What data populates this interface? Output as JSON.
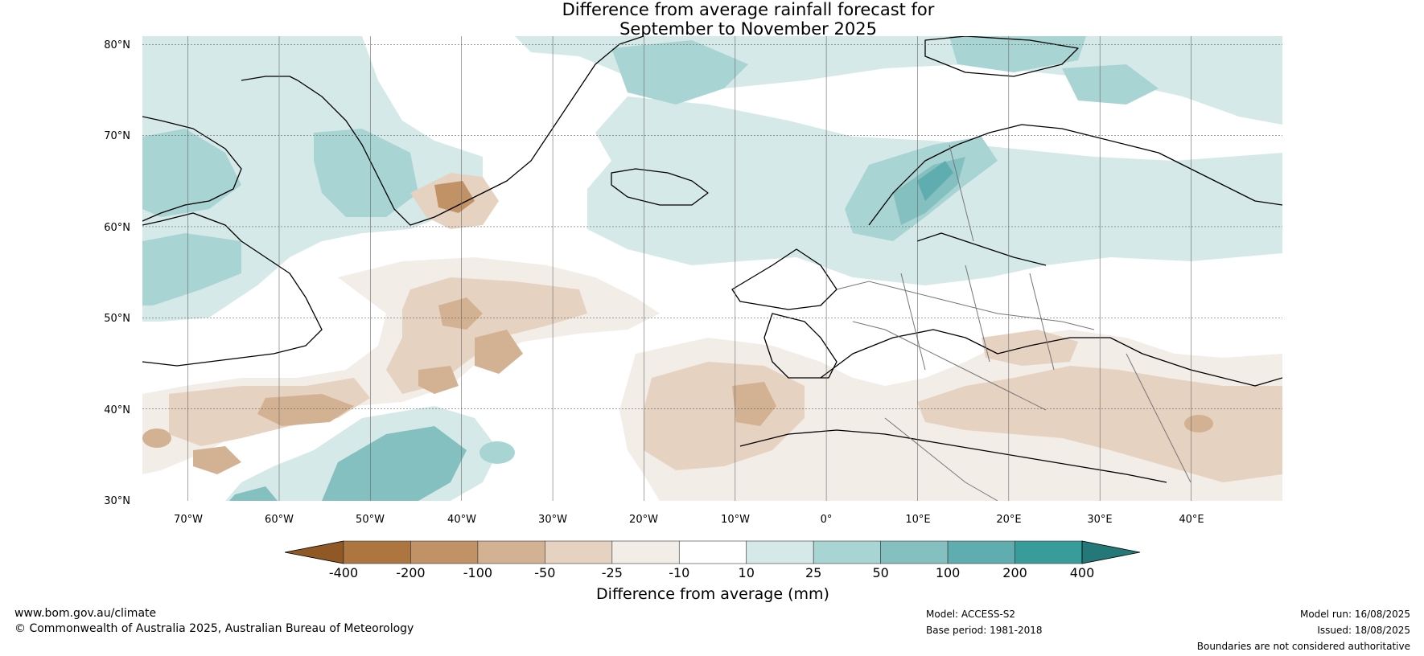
{
  "title_line1": "Difference from average rainfall forecast for",
  "title_line2": "September to November 2025",
  "map": {
    "lat_ticks": [
      "80°N",
      "70°N",
      "60°N",
      "50°N",
      "40°N",
      "30°N"
    ],
    "lon_ticks": [
      "70°W",
      "60°W",
      "50°W",
      "40°W",
      "30°W",
      "20°W",
      "10°W",
      "0°",
      "10°E",
      "20°E",
      "30°E",
      "40°E"
    ],
    "extent": {
      "lon": [
        -75,
        50
      ],
      "lat": [
        30,
        81
      ]
    }
  },
  "colorbar": {
    "label": "Difference from average (mm)",
    "ticks": [
      "-400",
      "-200",
      "-100",
      "-50",
      "-25",
      "-10",
      "10",
      "25",
      "50",
      "100",
      "200",
      "400"
    ],
    "colors": [
      "#8f5824",
      "#ad7641",
      "#c29267",
      "#d3b293",
      "#e6d2c1",
      "#f3ede8",
      "#ffffff",
      "#d5e9e8",
      "#a9d4d4",
      "#84c0c0",
      "#5fadae",
      "#389c9a",
      "#257878"
    ]
  },
  "footer": {
    "website": "www.bom.gov.au/climate",
    "copyright": "© Commonwealth of Australia 2025, Australian Bureau of Meteorology",
    "model": "Model: ACCESS-S2",
    "base_period": "Base period: 1981-2018",
    "model_run": "Model run: 16/08/2025",
    "issued": "Issued: 18/08/2025",
    "disclaimer": "Boundaries are not considered authoritative"
  }
}
